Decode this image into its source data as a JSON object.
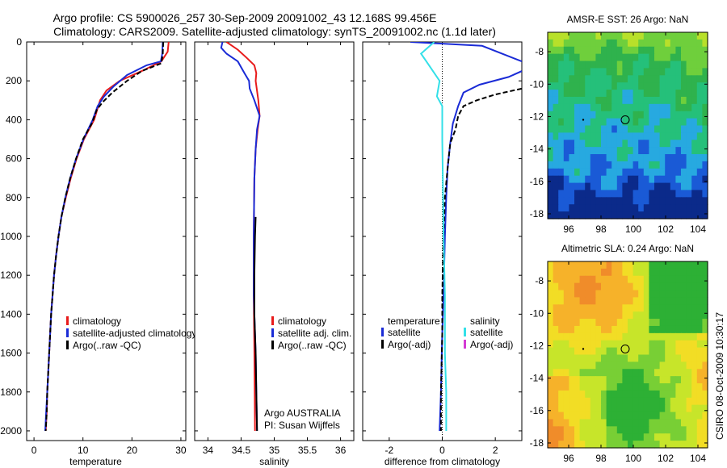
{
  "title_line1": "Argo profile: CS 5900026_257 30-Sep-2009 20091002_43 12.168S 99.456E",
  "title_line2": "Climatology: CARS2009. Satellite-adjusted climatology: synTS_20091002.nc (1.1d later)",
  "side_stamp": "CSIRO 08-Oct-2009 10:30:17",
  "colors": {
    "clim": "#e81b1b",
    "sat": "#1a2bd6",
    "argo": "#000000",
    "sal_sat": "#33e0e8",
    "sal_argo": "#d43bd4"
  },
  "chart_data": [
    {
      "type": "line",
      "id": "temperature",
      "xlabel": "temperature",
      "ylabel": "",
      "xlim": [
        -1.5,
        31
      ],
      "ylim": [
        2050,
        0
      ],
      "xticks": [
        "0",
        "10",
        "20",
        "30"
      ],
      "yticks": [
        "0",
        "200",
        "400",
        "600",
        "800",
        "1000",
        "1200",
        "1400",
        "1600",
        "1800",
        "2000"
      ],
      "legend": [
        "climatology",
        "satellite-adjusted climatology",
        "Argo(..raw -QC)"
      ],
      "series": [
        {
          "name": "climatology",
          "color": "#e81b1b",
          "points": [
            [
              27.5,
              0
            ],
            [
              27.3,
              50
            ],
            [
              26.0,
              100
            ],
            [
              22.0,
              150
            ],
            [
              17.5,
              200
            ],
            [
              14.8,
              250
            ],
            [
              13.5,
              300
            ],
            [
              12.3,
              400
            ],
            [
              10.2,
              500
            ],
            [
              8.7,
              600
            ],
            [
              7.5,
              700
            ],
            [
              6.5,
              800
            ],
            [
              5.6,
              900
            ],
            [
              5.0,
              1000
            ],
            [
              4.5,
              1100
            ],
            [
              4.1,
              1200
            ],
            [
              3.8,
              1300
            ],
            [
              3.5,
              1400
            ],
            [
              3.3,
              1500
            ],
            [
              3.1,
              1600
            ],
            [
              2.9,
              1700
            ],
            [
              2.7,
              1800
            ],
            [
              2.6,
              1900
            ],
            [
              2.4,
              2000
            ]
          ]
        },
        {
          "name": "satellite-adjusted climatology",
          "color": "#1a2bd6",
          "points": [
            [
              26.3,
              0
            ],
            [
              26.2,
              60
            ],
            [
              25.9,
              100
            ],
            [
              23.0,
              120
            ],
            [
              19.0,
              170
            ],
            [
              16.2,
              230
            ],
            [
              14.3,
              280
            ],
            [
              13.0,
              330
            ],
            [
              12.0,
              400
            ],
            [
              10.1,
              500
            ],
            [
              8.6,
              600
            ],
            [
              7.4,
              700
            ],
            [
              6.4,
              800
            ],
            [
              5.6,
              900
            ],
            [
              5.0,
              1000
            ],
            [
              4.5,
              1100
            ],
            [
              4.1,
              1200
            ],
            [
              3.8,
              1300
            ],
            [
              3.5,
              1400
            ],
            [
              3.3,
              1500
            ],
            [
              3.1,
              1600
            ],
            [
              2.9,
              1700
            ],
            [
              2.7,
              1800
            ],
            [
              2.5,
              1900
            ],
            [
              2.3,
              2000
            ]
          ]
        },
        {
          "name": "Argo(..raw -QC)",
          "color": "#000000",
          "dashed": true,
          "points": [
            [
              26.4,
              0
            ],
            [
              26.3,
              60
            ],
            [
              26.0,
              110
            ],
            [
              22.0,
              150
            ],
            [
              19.0,
              200
            ],
            [
              16.0,
              260
            ],
            [
              14.0,
              310
            ],
            [
              12.8,
              350
            ],
            [
              11.8,
              420
            ],
            [
              10.0,
              500
            ],
            [
              8.6,
              600
            ],
            [
              7.4,
              700
            ],
            [
              6.4,
              800
            ],
            [
              5.6,
              900
            ],
            [
              5.0,
              1000
            ],
            [
              4.5,
              1100
            ],
            [
              4.1,
              1200
            ],
            [
              3.8,
              1300
            ],
            [
              3.5,
              1400
            ],
            [
              3.3,
              1500
            ],
            [
              3.1,
              1600
            ],
            [
              2.9,
              1700
            ],
            [
              2.7,
              1800
            ],
            [
              2.6,
              1900
            ],
            [
              2.4,
              2000
            ]
          ]
        }
      ]
    },
    {
      "type": "line",
      "id": "salinity",
      "xlabel": "salinity",
      "xlim": [
        33.8,
        36.2
      ],
      "ylim": [
        2050,
        0
      ],
      "xticks": [
        "34",
        "34.5",
        "35",
        "35.5",
        "36"
      ],
      "legend": [
        "climatology",
        "satellite adj. clim.",
        "Argo(..raw -QC)"
      ],
      "annotation": [
        "Argo AUSTRALIA",
        "PI: Susan Wijffels"
      ],
      "series": [
        {
          "name": "climatology",
          "color": "#e81b1b",
          "points": [
            [
              34.28,
              0
            ],
            [
              34.45,
              40
            ],
            [
              34.58,
              80
            ],
            [
              34.7,
              120
            ],
            [
              34.73,
              160
            ],
            [
              34.72,
              200
            ],
            [
              34.76,
              300
            ],
            [
              34.78,
              380
            ],
            [
              34.75,
              450
            ],
            [
              34.72,
              550
            ],
            [
              34.7,
              700
            ],
            [
              34.69,
              1000
            ],
            [
              34.69,
              1300
            ],
            [
              34.7,
              1600
            ],
            [
              34.71,
              2000
            ]
          ]
        },
        {
          "name": "satellite adj. clim.",
          "color": "#1a2bd6",
          "points": [
            [
              34.22,
              0
            ],
            [
              34.2,
              30
            ],
            [
              34.28,
              60
            ],
            [
              34.45,
              100
            ],
            [
              34.55,
              160
            ],
            [
              34.62,
              200
            ],
            [
              34.63,
              240
            ],
            [
              34.7,
              300
            ],
            [
              34.78,
              380
            ],
            [
              34.74,
              450
            ],
            [
              34.72,
              550
            ],
            [
              34.7,
              700
            ],
            [
              34.69,
              1000
            ],
            [
              34.69,
              1300
            ],
            [
              34.72,
              1600
            ],
            [
              34.74,
              2000
            ]
          ]
        },
        {
          "name": "Argo(..raw -QC)",
          "color": "#000000",
          "points": [
            [
              34.72,
              900
            ],
            [
              34.71,
              1000
            ],
            [
              34.7,
              1200
            ],
            [
              34.7,
              1400
            ],
            [
              34.72,
              1600
            ],
            [
              34.73,
              1800
            ],
            [
              34.74,
              2000
            ]
          ]
        }
      ]
    },
    {
      "type": "line",
      "id": "difference",
      "xlabel": "difference from climatology",
      "xlim": [
        -3,
        3
      ],
      "ylim": [
        2050,
        0
      ],
      "xticks": [
        "-2",
        "0",
        "2"
      ],
      "legend_left_title": "temperature",
      "legend_right_title": "salinity",
      "legend": [
        "satellite",
        "Argo(-adj)",
        "satellite",
        "Argo(-adj)"
      ],
      "zero_line": true,
      "series": [
        {
          "name": "temperature satellite",
          "color": "#1a2bd6",
          "points": [
            [
              -1.2,
              0
            ],
            [
              1.5,
              20
            ],
            [
              3.0,
              100
            ]
          ]
        },
        {
          "name": "temperature satellite deep",
          "color": "#1a2bd6",
          "points": [
            [
              3.0,
              150
            ],
            [
              2.5,
              180
            ],
            [
              1.4,
              220
            ],
            [
              0.8,
              260
            ],
            [
              0.6,
              330
            ],
            [
              0.4,
              420
            ],
            [
              0.3,
              520
            ],
            [
              0.2,
              650
            ],
            [
              0.15,
              800
            ],
            [
              0.1,
              1000
            ],
            [
              0.05,
              1300
            ],
            [
              0.0,
              1500
            ],
            [
              -0.05,
              1800
            ],
            [
              -0.1,
              2000
            ]
          ]
        },
        {
          "name": "temperature Argo(-adj)",
          "color": "#000000",
          "dashed": true,
          "points": [
            [
              3.0,
              240
            ],
            [
              2.0,
              270
            ],
            [
              1.3,
              300
            ],
            [
              0.8,
              330
            ],
            [
              0.6,
              380
            ],
            [
              0.5,
              450
            ],
            [
              0.3,
              520
            ],
            [
              0.2,
              650
            ],
            [
              0.1,
              800
            ],
            [
              0.05,
              1000
            ],
            [
              0.0,
              1300
            ],
            [
              0.0,
              1500
            ],
            [
              -0.05,
              1800
            ],
            [
              -0.05,
              2000
            ]
          ]
        },
        {
          "name": "salinity satellite",
          "color": "#33e0e8",
          "points": [
            [
              -0.3,
              0
            ],
            [
              -0.8,
              60
            ],
            [
              -0.6,
              100
            ],
            [
              -0.1,
              200
            ],
            [
              -0.2,
              280
            ],
            [
              0.0,
              330
            ],
            [
              0.0,
              420
            ],
            [
              0.0,
              500
            ],
            [
              0.02,
              700
            ],
            [
              0.05,
              1000
            ],
            [
              0.1,
              1300
            ],
            [
              0.1,
              1600
            ],
            [
              0.15,
              1800
            ],
            [
              0.15,
              2000
            ]
          ]
        }
      ]
    },
    {
      "type": "heatmap",
      "id": "sst_map",
      "title": "AMSR-E SST: 26 Argo: NaN",
      "xticks": [
        "96",
        "98",
        "100",
        "102",
        "104"
      ],
      "yticks": [
        "-8",
        "-10",
        "-12",
        "-14",
        "-16",
        "-18"
      ],
      "xlim": [
        94.7,
        104.6
      ],
      "ylim": [
        -18.3,
        -6.8
      ],
      "marker": {
        "lon": 99.5,
        "lat": -12.2
      },
      "palette": [
        "#0b2a8a",
        "#1a5ad6",
        "#27a9e0",
        "#25c07a",
        "#2fb24d",
        "#6fcf3c",
        "#b8e02a"
      ]
    },
    {
      "type": "heatmap",
      "id": "sla_map",
      "title": "Altimetric SLA: 0.24 Argo: NaN",
      "xticks": [
        "96",
        "98",
        "100",
        "102",
        "104"
      ],
      "yticks": [
        "-8",
        "-10",
        "-12",
        "-14",
        "-16",
        "-18"
      ],
      "xlim": [
        94.7,
        104.6
      ],
      "ylim": [
        -18.3,
        -6.8
      ],
      "marker": {
        "lon": 99.5,
        "lat": -12.2
      },
      "palette": [
        "#2db035",
        "#78cf35",
        "#c7e52a",
        "#f2dd25",
        "#f6b22a",
        "#f08c2a"
      ]
    }
  ]
}
